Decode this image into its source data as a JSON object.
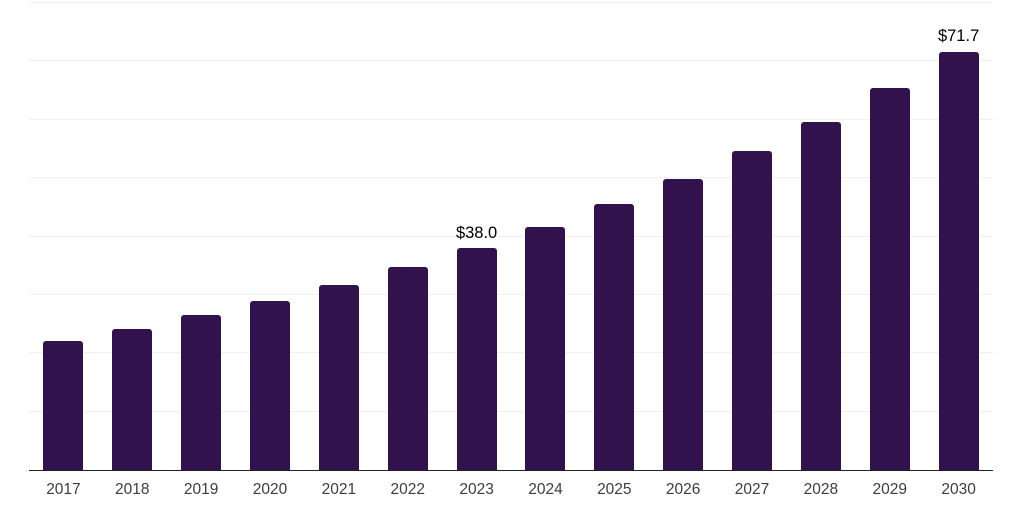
{
  "chart": {
    "background_color": "#ffffff"
  },
  "chart_data": {
    "type": "bar",
    "title": "",
    "xlabel": "",
    "ylabel": "",
    "categories": [
      "2017",
      "2018",
      "2019",
      "2020",
      "2021",
      "2022",
      "2023",
      "2024",
      "2025",
      "2026",
      "2027",
      "2028",
      "2029",
      "2030"
    ],
    "values": [
      22.1,
      24.2,
      26.5,
      29.0,
      31.7,
      34.7,
      38.0,
      41.6,
      45.5,
      49.8,
      54.6,
      59.7,
      65.4,
      71.7
    ],
    "data_labels": [
      "",
      "",
      "",
      "",
      "",
      "",
      "$38.0",
      "",
      "",
      "",
      "",
      "",
      "",
      "$71.7"
    ],
    "ylim": [
      0,
      80
    ],
    "gridline_step": 10,
    "grid": true,
    "legend": "none",
    "y_axis_tick_labels_visible": false,
    "bar_color": "#32124d",
    "gridline_color": "#f0f0f0",
    "axis_line_color": "#222222",
    "tick_label_color": "#3d3d3d",
    "data_label_color": "#000000"
  }
}
